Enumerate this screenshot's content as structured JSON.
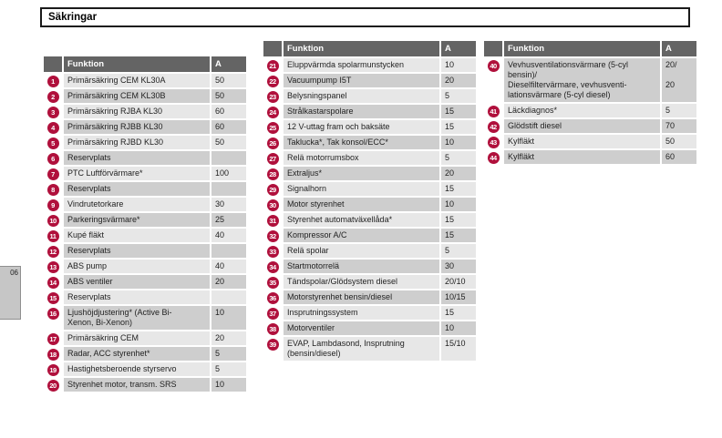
{
  "page": {
    "title": "Säkringar",
    "chapter_tab": "06"
  },
  "colors": {
    "badge": "#b0103c",
    "header_bg": "#646464",
    "row_light": "#e7e7e7",
    "row_dark": "#cecece",
    "tab_bg": "#c6c6c6"
  },
  "table_header": {
    "function": "Funktion",
    "amp": "A"
  },
  "tables": [
    {
      "rows": [
        {
          "num": "1",
          "function": "Primärsäkring CEM KL30A",
          "amp": "50"
        },
        {
          "num": "2",
          "function": "Primärsäkring CEM KL30B",
          "amp": "50"
        },
        {
          "num": "3",
          "function": "Primärsäkring RJBA KL30",
          "amp": "60"
        },
        {
          "num": "4",
          "function": "Primärsäkring RJBB KL30",
          "amp": "60"
        },
        {
          "num": "5",
          "function": "Primärsäkring RJBD KL30",
          "amp": "50"
        },
        {
          "num": "6",
          "function": "Reservplats",
          "amp": ""
        },
        {
          "num": "7",
          "function": "PTC Luftförvärmare*",
          "amp": "100"
        },
        {
          "num": "8",
          "function": "Reservplats",
          "amp": ""
        },
        {
          "num": "9",
          "function": "Vindrutetorkare",
          "amp": "30"
        },
        {
          "num": "10",
          "function": "Parkeringsvärmare*",
          "amp": "25"
        },
        {
          "num": "11",
          "function": "Kupé fläkt",
          "amp": "40"
        },
        {
          "num": "12",
          "function": "Reservplats",
          "amp": ""
        },
        {
          "num": "13",
          "function": "ABS pump",
          "amp": "40"
        },
        {
          "num": "14",
          "function": "ABS ventiler",
          "amp": "20"
        },
        {
          "num": "15",
          "function": "Reservplats",
          "amp": ""
        },
        {
          "num": "16",
          "function": "Ljushöjdjustering* (Active Bi-\nXenon, Bi-Xenon)",
          "amp": "10"
        },
        {
          "num": "17",
          "function": "Primärsäkring CEM",
          "amp": "20"
        },
        {
          "num": "18",
          "function": "Radar, ACC styrenhet*",
          "amp": "5"
        },
        {
          "num": "19",
          "function": "Hastighetsberoende styrservo",
          "amp": "5"
        },
        {
          "num": "20",
          "function": "Styrenhet motor, transm. SRS",
          "amp": "10"
        }
      ]
    },
    {
      "rows": [
        {
          "num": "21",
          "function": "Eluppvärmda spolarmunstycken",
          "amp": "10"
        },
        {
          "num": "22",
          "function": "Vacuumpump I5T",
          "amp": "20"
        },
        {
          "num": "23",
          "function": "Belysningspanel",
          "amp": "5"
        },
        {
          "num": "24",
          "function": "Strålkastarspolare",
          "amp": "15"
        },
        {
          "num": "25",
          "function": "12 V-uttag fram och baksäte",
          "amp": "15"
        },
        {
          "num": "26",
          "function": "Taklucka*, Tak konsol/ECC*",
          "amp": "10"
        },
        {
          "num": "27",
          "function": "Relä motorrumsbox",
          "amp": "5"
        },
        {
          "num": "28",
          "function": "Extraljus*",
          "amp": "20"
        },
        {
          "num": "29",
          "function": "Signalhorn",
          "amp": "15"
        },
        {
          "num": "30",
          "function": "Motor styrenhet",
          "amp": "10"
        },
        {
          "num": "31",
          "function": "Styrenhet automatväxellåda*",
          "amp": "15"
        },
        {
          "num": "32",
          "function": "Kompressor A/C",
          "amp": "15"
        },
        {
          "num": "33",
          "function": "Relä spolar",
          "amp": "5"
        },
        {
          "num": "34",
          "function": "Startmotorrelä",
          "amp": "30"
        },
        {
          "num": "35",
          "function": "Tändspolar/Glödsystem diesel",
          "amp": "20/10"
        },
        {
          "num": "36",
          "function": "Motorstyrenhet bensin/diesel",
          "amp": "10/15"
        },
        {
          "num": "37",
          "function": "Insprutningssystem",
          "amp": "15"
        },
        {
          "num": "38",
          "function": "Motorventiler",
          "amp": "10"
        },
        {
          "num": "39",
          "function": "EVAP, Lambdasond, Insprutning\n(bensin/diesel)",
          "amp": "15/10"
        }
      ]
    },
    {
      "rows": [
        {
          "num": "40",
          "function": "Vevhusventilationsvärmare (5-cyl\nbensin)/\nDieselfiltervärmare, vevhusventi-\nlationsvärmare (5-cyl diesel)",
          "amp": "20/\n\n20"
        },
        {
          "num": "41",
          "function": "Läckdiagnos*",
          "amp": "5"
        },
        {
          "num": "42",
          "function": "Glödstift diesel",
          "amp": "70"
        },
        {
          "num": "43",
          "function": "Kylfläkt",
          "amp": "50"
        },
        {
          "num": "44",
          "function": "Kylfläkt",
          "amp": "60"
        }
      ]
    }
  ]
}
